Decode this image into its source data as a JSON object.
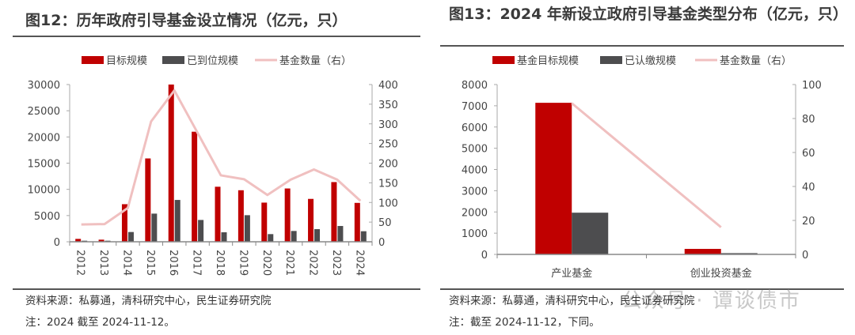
{
  "left_panel": {
    "title": "图12：历年政府引导基金设立情况（亿元，只）",
    "source": "资料来源：私募通，清科研究中心，民生证券研究院",
    "note": "注：2024 截至 2024-11-12。"
  },
  "right_panel": {
    "title": "图13：2024 年新设立政府引导基金类型分布（亿元，只）",
    "source": "资料来源：私募通，清科研究中心，民生证券研究院",
    "note": "注：截至 2024-11-12，下同。"
  },
  "watermark": "公众号 · 谭谈债市",
  "colors": {
    "target": "#c00000",
    "paid": "#4d4d4f",
    "count": "#f0c0c0"
  },
  "chart_data": [
    {
      "type": "bar",
      "categories": [
        "2012",
        "2013",
        "2014",
        "2015",
        "2016",
        "2017",
        "2018",
        "2019",
        "2020",
        "2021",
        "2022",
        "2023",
        "2024"
      ],
      "series": [
        {
          "name": "目标规模",
          "kind": "bar",
          "axis": "left",
          "values": [
            550,
            400,
            7170,
            15900,
            30000,
            21000,
            10500,
            9830,
            7470,
            10170,
            8180,
            11390,
            7420
          ]
        },
        {
          "name": "已到位规模",
          "kind": "bar",
          "axis": "left",
          "values": [
            200,
            200,
            1860,
            5370,
            7980,
            4160,
            1810,
            5070,
            1460,
            2060,
            2410,
            3010,
            2010
          ]
        },
        {
          "name": "基金数量（右）",
          "kind": "line",
          "axis": "right",
          "values": [
            44,
            45,
            86,
            306,
            385,
            277,
            169,
            159,
            119,
            158,
            184,
            158,
            104
          ]
        }
      ],
      "ylim": [
        0,
        30000
      ],
      "yticks": [
        0,
        5000,
        10000,
        15000,
        20000,
        25000,
        30000
      ],
      "y2lim": [
        0,
        400
      ],
      "y2ticks": [
        0,
        50,
        100,
        150,
        200,
        250,
        300,
        350,
        400
      ],
      "legend": "top",
      "grid": false
    },
    {
      "type": "bar",
      "categories": [
        "产业基金",
        "创业投资基金"
      ],
      "series": [
        {
          "name": "基金目标规模",
          "kind": "bar",
          "axis": "left",
          "values": [
            7140,
            260
          ]
        },
        {
          "name": "已认缴规模",
          "kind": "bar",
          "axis": "left",
          "values": [
            1965,
            60
          ]
        },
        {
          "name": "基金数量（右）",
          "kind": "line",
          "axis": "right",
          "values": [
            89,
            16
          ]
        }
      ],
      "ylim": [
        0,
        8000
      ],
      "yticks": [
        0,
        1000,
        2000,
        3000,
        4000,
        5000,
        6000,
        7000,
        8000
      ],
      "y2lim": [
        0,
        100
      ],
      "y2ticks": [
        0,
        20,
        40,
        60,
        80,
        100
      ],
      "legend": "top",
      "grid": false
    }
  ]
}
